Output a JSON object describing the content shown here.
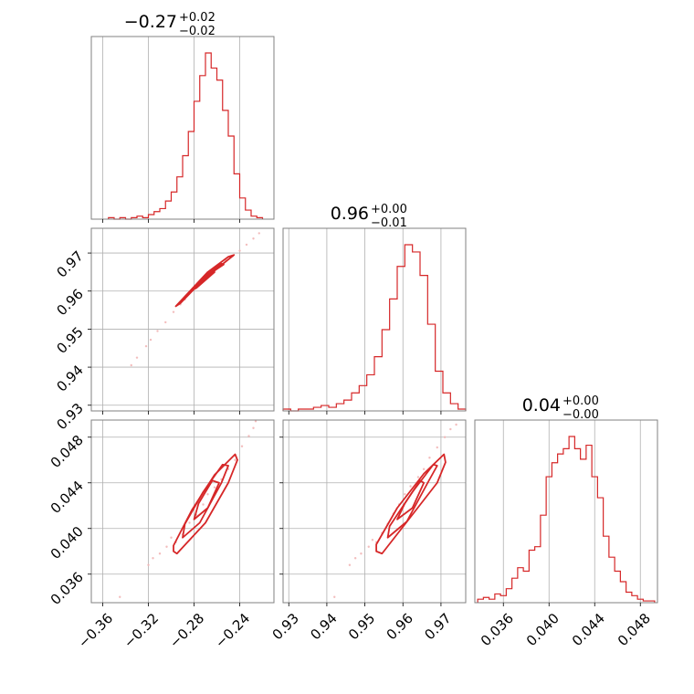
{
  "colors": {
    "series": "#d62728",
    "grid": "#b0b0b0",
    "frame": "#808080"
  },
  "chart_data": {
    "type": "corner",
    "variables": [
      {
        "title": {
          "value": "−0.27",
          "plus": "+0.02",
          "minus": "−0.02"
        },
        "range": [
          -0.37,
          -0.21
        ],
        "ticks": [
          -0.36,
          -0.32,
          -0.28,
          -0.24
        ],
        "tick_labels": [
          "−0.36",
          "−0.32",
          "−0.28",
          "−0.24"
        ],
        "histogram": {
          "bins": [
            -0.3525,
            -0.3475,
            -0.3425,
            -0.3375,
            -0.3325,
            -0.3275,
            -0.3225,
            -0.3175,
            -0.3125,
            -0.3075,
            -0.3025,
            -0.2975,
            -0.2925,
            -0.2875,
            -0.2825,
            -0.2775,
            -0.2725,
            -0.2675,
            -0.2625,
            -0.2575,
            -0.2525,
            -0.2475,
            -0.2425,
            -0.2375,
            -0.2325,
            -0.2275,
            -0.2225
          ],
          "counts": [
            1,
            0,
            1,
            0,
            1,
            2,
            1,
            3,
            5,
            7,
            12,
            18,
            28,
            42,
            58,
            78,
            95,
            110,
            100,
            92,
            72,
            55,
            30,
            14,
            6,
            2,
            1
          ]
        }
      },
      {
        "title": {
          "value": "0.96",
          "plus": "+0.00",
          "minus": "−0.01"
        },
        "range": [
          0.9285,
          0.9765
        ],
        "ticks": [
          0.93,
          0.94,
          0.95,
          0.96,
          0.97
        ],
        "tick_labels": [
          "0.93",
          "0.94",
          "0.95",
          "0.96",
          "0.97"
        ],
        "histogram": {
          "bins": [
            0.9295,
            0.9315,
            0.9335,
            0.9355,
            0.9375,
            0.9395,
            0.9415,
            0.9435,
            0.9455,
            0.9475,
            0.9495,
            0.9515,
            0.9535,
            0.9555,
            0.9575,
            0.9595,
            0.9615,
            0.9635,
            0.9655,
            0.9675,
            0.9695,
            0.9715,
            0.9735,
            0.9755
          ],
          "counts": [
            1,
            0,
            1,
            1,
            2,
            3,
            2,
            4,
            6,
            10,
            14,
            20,
            30,
            45,
            62,
            80,
            92,
            88,
            75,
            48,
            22,
            10,
            4,
            1
          ]
        }
      },
      {
        "title": {
          "value": "0.04",
          "plus": "+0.00",
          "minus": "−0.00"
        },
        "range": [
          0.0335,
          0.0495
        ],
        "ticks": [
          0.036,
          0.04,
          0.044,
          0.048
        ],
        "tick_labels": [
          "0.036",
          "0.040",
          "0.044",
          "0.048"
        ],
        "histogram": {
          "bins": [
            0.034,
            0.0345,
            0.035,
            0.0355,
            0.036,
            0.0365,
            0.037,
            0.0375,
            0.038,
            0.0385,
            0.039,
            0.0395,
            0.04,
            0.0405,
            0.041,
            0.0415,
            0.042,
            0.0425,
            0.043,
            0.0435,
            0.044,
            0.0445,
            0.045,
            0.0455,
            0.046,
            0.0465,
            0.047,
            0.0475,
            0.048,
            0.0485,
            0.049
          ],
          "counts": [
            2,
            3,
            2,
            5,
            4,
            8,
            14,
            20,
            18,
            30,
            32,
            50,
            72,
            80,
            85,
            88,
            95,
            88,
            82,
            90,
            72,
            60,
            38,
            26,
            18,
            12,
            6,
            4,
            2,
            1,
            1
          ]
        }
      }
    ],
    "pair_plots": [
      {
        "x_var": 0,
        "y_var": 1,
        "samples": [
          [
            -0.335,
            0.9405
          ],
          [
            -0.33,
            0.9425
          ],
          [
            -0.322,
            0.9455
          ],
          [
            -0.318,
            0.9472
          ],
          [
            -0.312,
            0.9495
          ],
          [
            -0.305,
            0.9518
          ],
          [
            -0.298,
            0.9545
          ],
          [
            -0.292,
            0.9565
          ],
          [
            -0.288,
            0.9578
          ],
          [
            -0.282,
            0.96
          ],
          [
            -0.276,
            0.9618
          ],
          [
            -0.27,
            0.9635
          ],
          [
            -0.264,
            0.9652
          ],
          [
            -0.258,
            0.9668
          ],
          [
            -0.252,
            0.968
          ],
          [
            -0.246,
            0.9692
          ],
          [
            -0.24,
            0.9706
          ],
          [
            -0.234,
            0.9722
          ],
          [
            -0.228,
            0.9738
          ],
          [
            -0.223,
            0.9752
          ]
        ],
        "contours": [
          [
            [
              -0.296,
              0.956
            ],
            [
              -0.268,
              0.965
            ],
            [
              -0.25,
              0.969
            ],
            [
              -0.245,
              0.9695
            ],
            [
              -0.272,
              0.963
            ],
            [
              -0.292,
              0.9568
            ],
            [
              -0.296,
              0.956
            ]
          ],
          [
            [
              -0.288,
              0.9585
            ],
            [
              -0.268,
              0.9645
            ],
            [
              -0.256,
              0.9672
            ],
            [
              -0.254,
              0.967
            ],
            [
              -0.27,
              0.9638
            ],
            [
              -0.286,
              0.9588
            ],
            [
              -0.288,
              0.9585
            ]
          ],
          [
            [
              -0.28,
              0.9605
            ],
            [
              -0.266,
              0.9645
            ],
            [
              -0.262,
              0.965
            ],
            [
              -0.278,
              0.9608
            ],
            [
              -0.28,
              0.9605
            ]
          ]
        ]
      },
      {
        "x_var": 0,
        "y_var": 2,
        "samples": [
          [
            -0.345,
            0.034
          ],
          [
            -0.32,
            0.0368
          ],
          [
            -0.316,
            0.0374
          ],
          [
            -0.31,
            0.0378
          ],
          [
            -0.304,
            0.0384
          ],
          [
            -0.3,
            0.0392
          ],
          [
            -0.296,
            0.0388
          ],
          [
            -0.29,
            0.0395
          ],
          [
            -0.284,
            0.0405
          ],
          [
            -0.278,
            0.0412
          ],
          [
            -0.272,
            0.0421
          ],
          [
            -0.268,
            0.043
          ],
          [
            -0.262,
            0.0436
          ],
          [
            -0.256,
            0.0443
          ],
          [
            -0.25,
            0.0452
          ],
          [
            -0.244,
            0.046
          ],
          [
            -0.238,
            0.0472
          ],
          [
            -0.232,
            0.0481
          ],
          [
            -0.228,
            0.0488
          ],
          [
            -0.226,
            0.0494
          ]
        ],
        "contours": [
          [
            [
              -0.298,
              0.038
            ],
            [
              -0.295,
              0.0378
            ],
            [
              -0.27,
              0.0405
            ],
            [
              -0.25,
              0.044
            ],
            [
              -0.242,
              0.046
            ],
            [
              -0.244,
              0.0465
            ],
            [
              -0.262,
              0.0447
            ],
            [
              -0.282,
              0.0416
            ],
            [
              -0.298,
              0.0385
            ],
            [
              -0.298,
              0.038
            ]
          ],
          [
            [
              -0.29,
              0.0392
            ],
            [
              -0.275,
              0.0405
            ],
            [
              -0.256,
              0.044
            ],
            [
              -0.25,
              0.0455
            ],
            [
              -0.255,
              0.0456
            ],
            [
              -0.272,
              0.0432
            ],
            [
              -0.288,
              0.0404
            ],
            [
              -0.29,
              0.0392
            ]
          ],
          [
            [
              -0.28,
              0.0408
            ],
            [
              -0.268,
              0.0418
            ],
            [
              -0.258,
              0.044
            ],
            [
              -0.264,
              0.0442
            ],
            [
              -0.276,
              0.0422
            ],
            [
              -0.28,
              0.0408
            ]
          ]
        ]
      },
      {
        "x_var": 1,
        "y_var": 2,
        "samples": [
          [
            0.942,
            0.034
          ],
          [
            0.946,
            0.0368
          ],
          [
            0.9475,
            0.0374
          ],
          [
            0.949,
            0.0378
          ],
          [
            0.951,
            0.0384
          ],
          [
            0.952,
            0.039
          ],
          [
            0.953,
            0.0388
          ],
          [
            0.9545,
            0.0396
          ],
          [
            0.956,
            0.0404
          ],
          [
            0.9575,
            0.0413
          ],
          [
            0.959,
            0.0421
          ],
          [
            0.9605,
            0.043
          ],
          [
            0.962,
            0.0437
          ],
          [
            0.964,
            0.0445
          ],
          [
            0.9655,
            0.0452
          ],
          [
            0.967,
            0.0462
          ],
          [
            0.969,
            0.0471
          ],
          [
            0.971,
            0.048
          ],
          [
            0.9725,
            0.0487
          ],
          [
            0.974,
            0.0491
          ]
        ],
        "contours": [
          [
            [
              0.953,
              0.038
            ],
            [
              0.9545,
              0.0378
            ],
            [
              0.962,
              0.041
            ],
            [
              0.969,
              0.044
            ],
            [
              0.9712,
              0.0458
            ],
            [
              0.9708,
              0.0465
            ],
            [
              0.9655,
              0.0448
            ],
            [
              0.9585,
              0.0418
            ],
            [
              0.953,
              0.0386
            ],
            [
              0.953,
              0.038
            ]
          ],
          [
            [
              0.956,
              0.0392
            ],
            [
              0.961,
              0.0406
            ],
            [
              0.9665,
              0.044
            ],
            [
              0.969,
              0.0455
            ],
            [
              0.968,
              0.0456
            ],
            [
              0.9625,
              0.0432
            ],
            [
              0.9565,
              0.0402
            ],
            [
              0.956,
              0.0392
            ]
          ],
          [
            [
              0.9585,
              0.0408
            ],
            [
              0.9625,
              0.0418
            ],
            [
              0.9655,
              0.044
            ],
            [
              0.9645,
              0.0442
            ],
            [
              0.9605,
              0.0422
            ],
            [
              0.9585,
              0.0408
            ]
          ]
        ]
      }
    ]
  }
}
